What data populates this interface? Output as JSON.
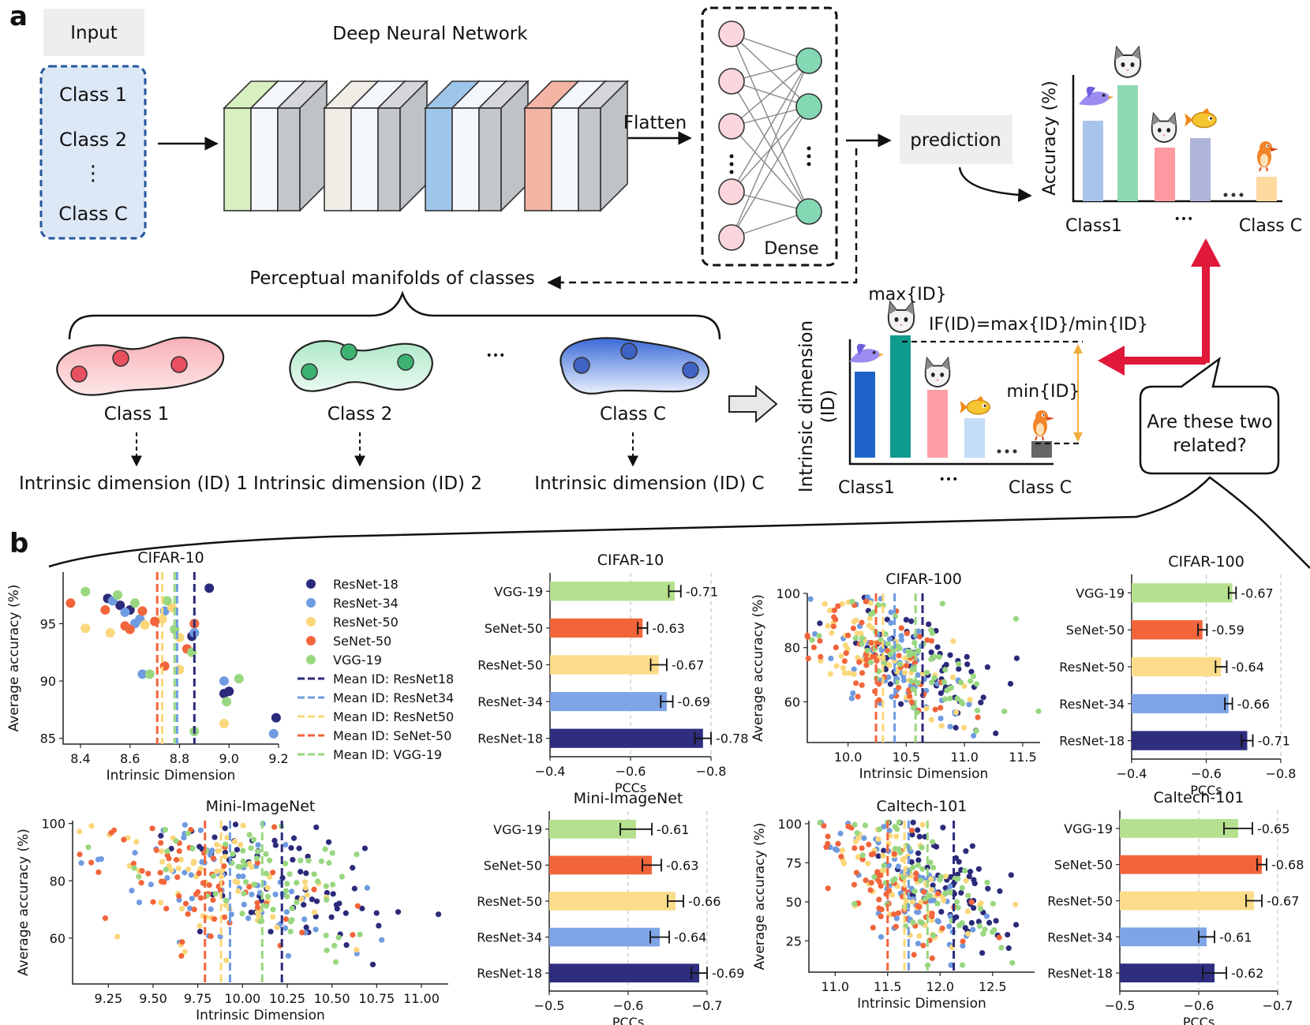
{
  "panel_a": {
    "label": "a",
    "input_label": "Input",
    "input_classes": [
      "Class 1",
      "Class 2",
      "⋮",
      "Class C"
    ],
    "dnn_title": "Deep Neural Network",
    "flatten_label": "Flatten",
    "dense_label": "Dense",
    "prediction_label": "prediction",
    "accuracy_axis_label": "Accuracy (%)",
    "accuracy_x_first": "Class1",
    "accuracy_x_dots": "•••",
    "accuracy_x_last": "Class C",
    "accuracy_bar_colors": [
      "#a9c4eb",
      "#8fd9b2",
      "#ff9aa2",
      "#b0b4d9",
      "#fdd9a0"
    ],
    "manifolds_title": "Perceptual manifolds of classes",
    "manifold_labels": [
      "Class 1",
      "Class 2",
      "Class C"
    ],
    "manifold_dots": "•••",
    "id_labels": [
      "Intrinsic dimension (ID) 1",
      "Intrinsic dimension (ID) 2",
      "Intrinsic dimension (ID) C"
    ],
    "id_axis_label_1": "Intrinsic dimension",
    "id_axis_label_2": "(ID)",
    "max_id_label": "max{ID}",
    "min_id_label": "min{ID}",
    "if_formula": "IF(ID)=max{ID}/min{ID}",
    "id_x_first": "Class1",
    "id_x_dots": "•••",
    "id_x_last": "Class C",
    "id_bar_colors": [
      "#1f63c9",
      "#0f9b8e",
      "#ff9da6",
      "#c4dcf7",
      "#666666"
    ],
    "question_line1": "Are these two",
    "question_line2": "related?"
  },
  "panel_b": {
    "label": "b",
    "legend": [
      {
        "name": "ResNet-18",
        "color": "#2b2a7a"
      },
      {
        "name": "ResNet-34",
        "color": "#6f9be0"
      },
      {
        "name": "ResNet-50",
        "color": "#fad77a"
      },
      {
        "name": "SeNet-50",
        "color": "#f2653b"
      },
      {
        "name": "VGG-19",
        "color": "#98d77f"
      }
    ],
    "legend_lines": [
      {
        "name": "Mean ID: ResNet18",
        "color": "#2b2a7a"
      },
      {
        "name": "Mean ID: ResNet34",
        "color": "#6f9be0"
      },
      {
        "name": "Mean ID: ResNet50",
        "color": "#fad77a"
      },
      {
        "name": "Mean ID: SeNet-50",
        "color": "#f2653b"
      },
      {
        "name": "Mean ID: VGG-19",
        "color": "#98d77f"
      }
    ]
  },
  "chart_data": [
    {
      "type": "scatter",
      "title": "CIFAR-10",
      "xlabel": "Intrinsic Dimension",
      "ylabel": "Average accuracy (%)",
      "xlim": [
        8.33,
        9.2
      ],
      "ylim": [
        84.5,
        99.5
      ],
      "xticks": [
        "8.4",
        "8.6",
        "8.8",
        "9.0",
        "9.2"
      ],
      "xtick_values": [
        8.4,
        8.6,
        8.8,
        9.0,
        9.2
      ],
      "yticks": [
        "85",
        "90",
        "95"
      ],
      "ytick_values": [
        85,
        90,
        95
      ],
      "mean_lines": [
        8.86,
        8.79,
        8.73,
        8.71,
        8.78
      ],
      "points": [
        [
          [
            8.51,
            97.2
          ],
          [
            8.56,
            96.6
          ],
          [
            8.6,
            96.2
          ],
          [
            8.92,
            98.1
          ],
          [
            8.86,
            95.0
          ],
          [
            8.85,
            93.9
          ],
          [
            8.98,
            88.9
          ],
          [
            9.0,
            89.1
          ],
          [
            9.19,
            86.8
          ]
        ],
        [
          [
            8.53,
            97.0
          ],
          [
            8.58,
            96.0
          ],
          [
            8.62,
            95.0
          ],
          [
            8.64,
            95.4
          ],
          [
            8.65,
            90.6
          ],
          [
            8.74,
            96.1
          ],
          [
            8.86,
            94.2
          ],
          [
            8.98,
            90.0
          ],
          [
            9.18,
            85.4
          ]
        ],
        [
          [
            8.42,
            94.6
          ],
          [
            8.52,
            94.2
          ],
          [
            8.66,
            94.9
          ],
          [
            8.73,
            95.4
          ],
          [
            8.77,
            96.4
          ],
          [
            8.8,
            91.0
          ],
          [
            8.8,
            93.8
          ],
          [
            8.98,
            86.3
          ]
        ],
        [
          [
            8.36,
            96.8
          ],
          [
            8.5,
            96.2
          ],
          [
            8.58,
            94.8
          ],
          [
            8.6,
            94.5
          ],
          [
            8.65,
            96.1
          ],
          [
            8.7,
            95.2
          ],
          [
            8.74,
            91.3
          ],
          [
            8.83,
            92.8
          ],
          [
            8.86,
            95.0
          ]
        ],
        [
          [
            8.42,
            97.8
          ],
          [
            8.55,
            97.5
          ],
          [
            8.62,
            96.8
          ],
          [
            8.68,
            90.6
          ],
          [
            8.75,
            97.0
          ],
          [
            8.78,
            94.5
          ],
          [
            8.85,
            92.5
          ],
          [
            8.99,
            88.2
          ],
          [
            9.04,
            90.2
          ],
          [
            8.86,
            85.6
          ]
        ]
      ]
    },
    {
      "type": "bar",
      "orientation": "horizontal",
      "title": "CIFAR-10",
      "xlabel": "PCCs",
      "categories": [
        "VGG-19",
        "SeNet-50",
        "ResNet-50",
        "ResNet-34",
        "ResNet-18"
      ],
      "values": [
        -0.71,
        -0.63,
        -0.67,
        -0.69,
        -0.78
      ],
      "errors": [
        0.015,
        0.012,
        0.02,
        0.015,
        0.02
      ],
      "value_labels": [
        "-0.71",
        "-0.63",
        "-0.67",
        "-0.69",
        "-0.78"
      ],
      "xlim": [
        -0.4,
        -0.8
      ],
      "xticks": [
        "−0.4",
        "−0.6",
        "−0.8"
      ],
      "xtick_values": [
        -0.4,
        -0.6,
        -0.8
      ],
      "colors": [
        "#b5e08f",
        "#f2653b",
        "#fbdc8a",
        "#7ea4e6",
        "#2e2d7e"
      ]
    },
    {
      "type": "scatter",
      "title": "CIFAR-100",
      "xlabel": "Intrinsic Dimension",
      "ylabel": "Average accuracy (%)",
      "xlim": [
        9.65,
        11.65
      ],
      "ylim": [
        45,
        100
      ],
      "xticks": [
        "10.0",
        "10.5",
        "11.0",
        "11.5"
      ],
      "xtick_values": [
        10.0,
        10.5,
        11.0,
        11.5
      ],
      "yticks": [
        "60",
        "80",
        "100"
      ],
      "ytick_values": [
        60,
        80,
        100
      ],
      "mean_lines": [
        10.64,
        10.4,
        10.3,
        10.24,
        10.58
      ],
      "cloud": {
        "seed": 11,
        "n": 70,
        "xmean": [
          10.64,
          10.4,
          10.3,
          10.24,
          10.58
        ],
        "xsd": 0.35,
        "slope": -22,
        "ycenter": 76,
        "ysd": 9
      }
    },
    {
      "type": "bar",
      "orientation": "horizontal",
      "title": "CIFAR-100",
      "xlabel": "PCCs",
      "categories": [
        "VGG-19",
        "SeNet-50",
        "ResNet-50",
        "ResNet-34",
        "ResNet-18"
      ],
      "values": [
        -0.67,
        -0.59,
        -0.64,
        -0.66,
        -0.71
      ],
      "errors": [
        0.01,
        0.012,
        0.015,
        0.01,
        0.015
      ],
      "value_labels": [
        "-0.67",
        "-0.59",
        "-0.64",
        "-0.66",
        "-0.71"
      ],
      "xlim": [
        -0.4,
        -0.8
      ],
      "xticks": [
        "−0.4",
        "−0.6",
        "−0.8"
      ],
      "xtick_values": [
        -0.4,
        -0.6,
        -0.8
      ],
      "colors": [
        "#b5e08f",
        "#f2653b",
        "#fbdc8a",
        "#7ea4e6",
        "#2e2d7e"
      ]
    },
    {
      "type": "scatter",
      "title": "Mini-ImageNet",
      "xlabel": "Intrinsic Dimension",
      "ylabel": "Average accuracy (%)",
      "xlim": [
        9.05,
        11.15
      ],
      "ylim": [
        44,
        101
      ],
      "xticks": [
        "9.25",
        "9.50",
        "9.75",
        "10.00",
        "10.25",
        "10.50",
        "10.75",
        "11.00"
      ],
      "xtick_values": [
        9.25,
        9.5,
        9.75,
        10.0,
        10.25,
        10.5,
        10.75,
        11.0
      ],
      "yticks": [
        "60",
        "80",
        "100"
      ],
      "ytick_values": [
        60,
        80,
        100
      ],
      "mean_lines": [
        10.22,
        9.93,
        9.88,
        9.79,
        10.11
      ],
      "cloud": {
        "seed": 23,
        "n": 70,
        "xmean": [
          10.22,
          9.93,
          9.88,
          9.79,
          10.11
        ],
        "xsd": 0.35,
        "slope": -20,
        "ycenter": 78,
        "ysd": 10
      }
    },
    {
      "type": "bar",
      "orientation": "horizontal",
      "title": "Mini-ImageNet",
      "xlabel": "PCCs",
      "categories": [
        "VGG-19",
        "SeNet-50",
        "ResNet-50",
        "ResNet-34",
        "ResNet-18"
      ],
      "values": [
        -0.61,
        -0.63,
        -0.66,
        -0.64,
        -0.69
      ],
      "errors": [
        0.02,
        0.012,
        0.01,
        0.012,
        0.01
      ],
      "value_labels": [
        "-0.61",
        "-0.63",
        "-0.66",
        "-0.64",
        "-0.69"
      ],
      "xlim": [
        -0.5,
        -0.7
      ],
      "xticks": [
        "−0.5",
        "−0.6",
        "−0.7"
      ],
      "xtick_values": [
        -0.5,
        -0.6,
        -0.7
      ],
      "colors": [
        "#b5e08f",
        "#f2653b",
        "#fbdc8a",
        "#7ea4e6",
        "#2e2d7e"
      ]
    },
    {
      "type": "scatter",
      "title": "Caltech-101",
      "xlabel": "Intrinsic Dimension",
      "ylabel": "Average accuracy (%)",
      "xlim": [
        10.75,
        12.9
      ],
      "ylim": [
        5,
        102
      ],
      "xticks": [
        "11.0",
        "11.5",
        "12.0",
        "12.5"
      ],
      "xtick_values": [
        11.0,
        11.5,
        12.0,
        12.5
      ],
      "yticks": [
        "25",
        "50",
        "75",
        "100"
      ],
      "ytick_values": [
        25,
        50,
        75,
        100
      ],
      "mean_lines": [
        12.13,
        11.7,
        11.66,
        11.5,
        11.88
      ],
      "cloud": {
        "seed": 37,
        "n": 70,
        "xmean": [
          12.13,
          11.7,
          11.66,
          11.5,
          11.88
        ],
        "xsd": 0.35,
        "slope": -40,
        "ycenter": 60,
        "ysd": 18
      }
    },
    {
      "type": "bar",
      "orientation": "horizontal",
      "title": "Caltech-101",
      "xlabel": "PCCs",
      "categories": [
        "VGG-19",
        "SeNet-50",
        "ResNet-50",
        "ResNet-34",
        "ResNet-18"
      ],
      "values": [
        -0.65,
        -0.68,
        -0.67,
        -0.61,
        -0.62
      ],
      "errors": [
        0.018,
        0.006,
        0.01,
        0.01,
        0.015
      ],
      "value_labels": [
        "-0.65",
        "-0.68",
        "-0.67",
        "-0.61",
        "-0.62"
      ],
      "xlim": [
        -0.5,
        -0.7
      ],
      "xticks": [
        "−0.5",
        "−0.6",
        "−0.7"
      ],
      "xtick_values": [
        -0.5,
        -0.6,
        -0.7
      ],
      "colors": [
        "#b5e08f",
        "#f2653b",
        "#fbdc8a",
        "#7ea4e6",
        "#2e2d7e"
      ]
    }
  ]
}
